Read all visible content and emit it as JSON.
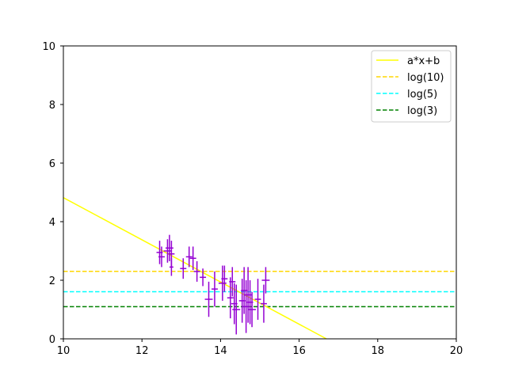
{
  "chart_data": {
    "type": "scatter",
    "title": "",
    "xlabel": "",
    "ylabel": "",
    "xlim": [
      10,
      20
    ],
    "ylim": [
      0,
      10
    ],
    "xticks": [
      "10",
      "12",
      "14",
      "16",
      "18",
      "20"
    ],
    "yticks": [
      "0",
      "2",
      "4",
      "6",
      "8",
      "10"
    ],
    "grid": false,
    "legend_position": "top-right",
    "lines": [
      {
        "name": "a*x+b",
        "kind": "fit",
        "slope": -0.72,
        "intercept": 12.02,
        "color": "#ffff00",
        "dash": "solid"
      },
      {
        "name": "log(10)",
        "kind": "hline",
        "y": 2.3026,
        "color": "#ffd700",
        "dash": "dashed"
      },
      {
        "name": "log(5)",
        "kind": "hline",
        "y": 1.6094,
        "color": "#00ffff",
        "dash": "dashed"
      },
      {
        "name": "log(3)",
        "kind": "hline",
        "y": 1.0986,
        "color": "#008000",
        "dash": "dashed"
      }
    ],
    "points": {
      "color": "#9400d3",
      "data": [
        {
          "x": 12.45,
          "y": 2.95,
          "xerr": 0.08,
          "yerr": 0.4
        },
        {
          "x": 12.5,
          "y": 2.8,
          "xerr": 0.08,
          "yerr": 0.35
        },
        {
          "x": 12.65,
          "y": 3.0,
          "xerr": 0.1,
          "yerr": 0.4
        },
        {
          "x": 12.7,
          "y": 3.1,
          "xerr": 0.1,
          "yerr": 0.45
        },
        {
          "x": 12.75,
          "y": 2.9,
          "xerr": 0.08,
          "yerr": 0.45
        },
        {
          "x": 12.75,
          "y": 2.45,
          "xerr": 0.05,
          "yerr": 0.3
        },
        {
          "x": 13.05,
          "y": 2.4,
          "xerr": 0.08,
          "yerr": 0.35
        },
        {
          "x": 13.2,
          "y": 2.8,
          "xerr": 0.08,
          "yerr": 0.35
        },
        {
          "x": 13.3,
          "y": 2.75,
          "xerr": 0.08,
          "yerr": 0.4
        },
        {
          "x": 13.4,
          "y": 2.3,
          "xerr": 0.08,
          "yerr": 0.35
        },
        {
          "x": 13.55,
          "y": 2.1,
          "xerr": 0.08,
          "yerr": 0.3
        },
        {
          "x": 13.7,
          "y": 1.35,
          "xerr": 0.1,
          "yerr": 0.6
        },
        {
          "x": 13.85,
          "y": 1.7,
          "xerr": 0.08,
          "yerr": 0.6
        },
        {
          "x": 14.05,
          "y": 1.9,
          "xerr": 0.1,
          "yerr": 0.6
        },
        {
          "x": 14.1,
          "y": 2.05,
          "xerr": 0.08,
          "yerr": 0.45
        },
        {
          "x": 14.25,
          "y": 1.4,
          "xerr": 0.08,
          "yerr": 0.7
        },
        {
          "x": 14.3,
          "y": 1.95,
          "xerr": 0.08,
          "yerr": 0.5
        },
        {
          "x": 14.35,
          "y": 1.2,
          "xerr": 0.08,
          "yerr": 0.7
        },
        {
          "x": 14.4,
          "y": 1.0,
          "xerr": 0.1,
          "yerr": 0.85
        },
        {
          "x": 14.55,
          "y": 1.3,
          "xerr": 0.08,
          "yerr": 0.75
        },
        {
          "x": 14.6,
          "y": 1.65,
          "xerr": 0.08,
          "yerr": 0.8
        },
        {
          "x": 14.65,
          "y": 1.1,
          "xerr": 0.08,
          "yerr": 0.9
        },
        {
          "x": 14.7,
          "y": 1.5,
          "xerr": 0.1,
          "yerr": 0.95
        },
        {
          "x": 14.75,
          "y": 1.25,
          "xerr": 0.08,
          "yerr": 0.75
        },
        {
          "x": 14.8,
          "y": 1.0,
          "xerr": 0.1,
          "yerr": 0.6
        },
        {
          "x": 14.95,
          "y": 1.35,
          "xerr": 0.08,
          "yerr": 0.7
        },
        {
          "x": 15.1,
          "y": 1.2,
          "xerr": 0.08,
          "yerr": 0.65
        },
        {
          "x": 15.15,
          "y": 2.0,
          "xerr": 0.1,
          "yerr": 0.45
        }
      ]
    }
  }
}
